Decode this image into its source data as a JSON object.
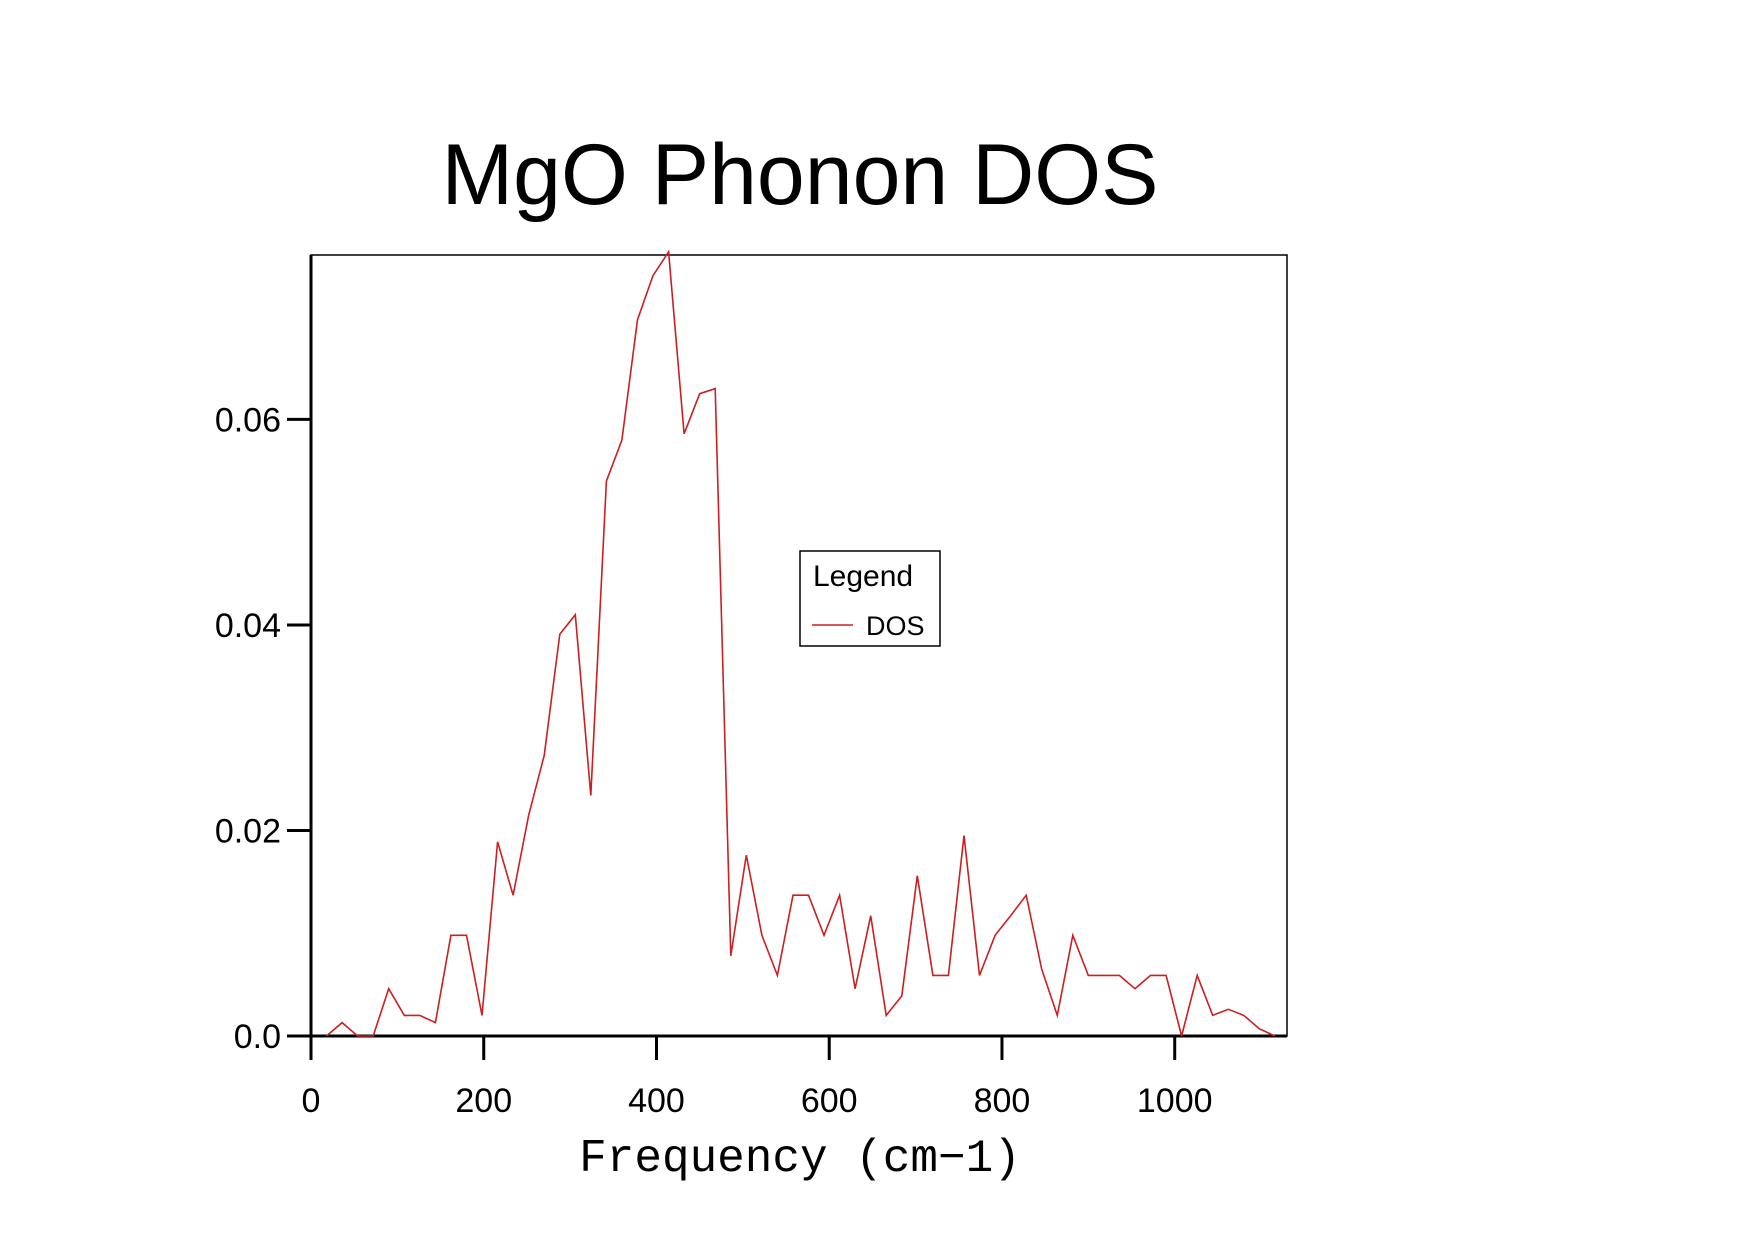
{
  "chart_data": {
    "type": "line",
    "title": "MgO Phonon DOS",
    "xlabel": "Frequency (cm−1)",
    "ylabel": "",
    "xlim": [
      0,
      1130
    ],
    "ylim": [
      0,
      0.076
    ],
    "x_ticks": [
      {
        "value": 0,
        "label": "0"
      },
      {
        "value": 200,
        "label": "200"
      },
      {
        "value": 400,
        "label": "400"
      },
      {
        "value": 600,
        "label": "600"
      },
      {
        "value": 800,
        "label": "800"
      },
      {
        "value": 1000,
        "label": "1000"
      }
    ],
    "y_ticks": [
      {
        "value": 0.0,
        "label": "0.0"
      },
      {
        "value": 0.02,
        "label": "0.02"
      },
      {
        "value": 0.04,
        "label": "0.04"
      },
      {
        "value": 0.06,
        "label": "0.06"
      }
    ],
    "grid": false,
    "legend": {
      "title": "Legend",
      "placement": "center"
    },
    "series": [
      {
        "name": "DOS",
        "color": "#cc1f1f",
        "x": [
          18,
          36,
          54,
          72,
          90,
          108,
          126,
          144,
          162,
          180,
          198,
          216,
          234,
          252,
          270,
          288,
          306,
          324,
          342,
          360,
          378,
          396,
          414,
          432,
          450,
          468,
          486,
          504,
          522,
          540,
          558,
          576,
          594,
          612,
          630,
          648,
          666,
          684,
          702,
          720,
          738,
          756,
          774,
          792,
          810,
          828,
          846,
          864,
          882,
          900,
          918,
          936,
          954,
          972,
          990,
          1008,
          1026,
          1044,
          1062,
          1080,
          1098,
          1116
        ],
        "y": [
          0.0,
          0.0013,
          0.0,
          0.0,
          0.0046,
          0.002,
          0.002,
          0.0013,
          0.0098,
          0.0098,
          0.002,
          0.0189,
          0.0137,
          0.0215,
          0.0273,
          0.0391,
          0.041,
          0.0234,
          0.054,
          0.058,
          0.0697,
          0.074,
          0.0763,
          0.0586,
          0.0625,
          0.063,
          0.0078,
          0.0176,
          0.0098,
          0.0059,
          0.0137,
          0.0137,
          0.0098,
          0.0137,
          0.0046,
          0.0117,
          0.002,
          0.0039,
          0.0156,
          0.0059,
          0.0059,
          0.0195,
          0.0059,
          0.0098,
          0.0117,
          0.0137,
          0.0065,
          0.002,
          0.0098,
          0.0059,
          0.0059,
          0.0059,
          0.0046,
          0.0059,
          0.0059,
          0.0,
          0.0059,
          0.002,
          0.0026,
          0.002,
          0.0007,
          0.0
        ]
      }
    ]
  }
}
